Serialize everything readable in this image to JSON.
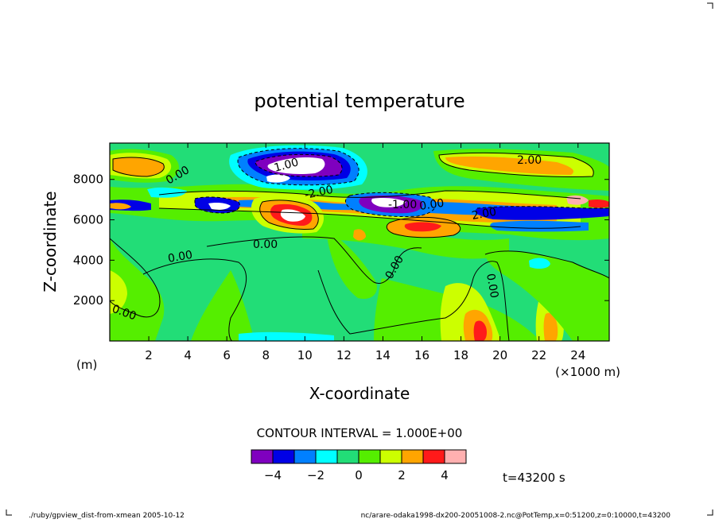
{
  "chart_data": {
    "type": "heatmap",
    "title": "potential temperature",
    "xlabel": "X-coordinate",
    "ylabel": "Z-coordinate",
    "x_unit_label": "(×1000 m)",
    "y_unit_label": "(m)",
    "xlim": [
      0,
      25.6
    ],
    "ylim": [
      0,
      9800
    ],
    "x_ticks": [
      2,
      4,
      6,
      8,
      10,
      12,
      14,
      16,
      18,
      20,
      22,
      24
    ],
    "y_ticks": [
      2000,
      4000,
      6000,
      8000
    ],
    "contour_interval_text": "CONTOUR INTERVAL = 1.000E+00",
    "contour_labels": [
      "0.00",
      "0.00",
      "0.00",
      "0.00",
      "0.00",
      "0.00",
      "0.00",
      "2.00",
      "2.00",
      "-2.00",
      "-1.00",
      "1.00"
    ],
    "colorbar": {
      "bins": [
        -5,
        -4,
        -3,
        -2,
        -1,
        0,
        1,
        2,
        3,
        4,
        5
      ],
      "colors": [
        "#7f00bf",
        "#0000e6",
        "#0080ff",
        "#00ffff",
        "#22dd77",
        "#55ee00",
        "#ccff00",
        "#ffa500",
        "#ff1a1a",
        "#ffb0b0"
      ],
      "tick_labels": [
        "-4",
        "-2",
        "0",
        "2",
        "4"
      ],
      "tick_values": [
        -4,
        -2,
        0,
        2,
        4
      ]
    },
    "grid": false
  },
  "time_label": "t=43200 s",
  "footer": {
    "left": "./ruby/gpview_dist-from-xmean   2005-10-12",
    "right": "nc/arare-odaka1998-dx200-20051008-2.nc@PotTemp,x=0:51200,z=0:10000,t=43200"
  }
}
